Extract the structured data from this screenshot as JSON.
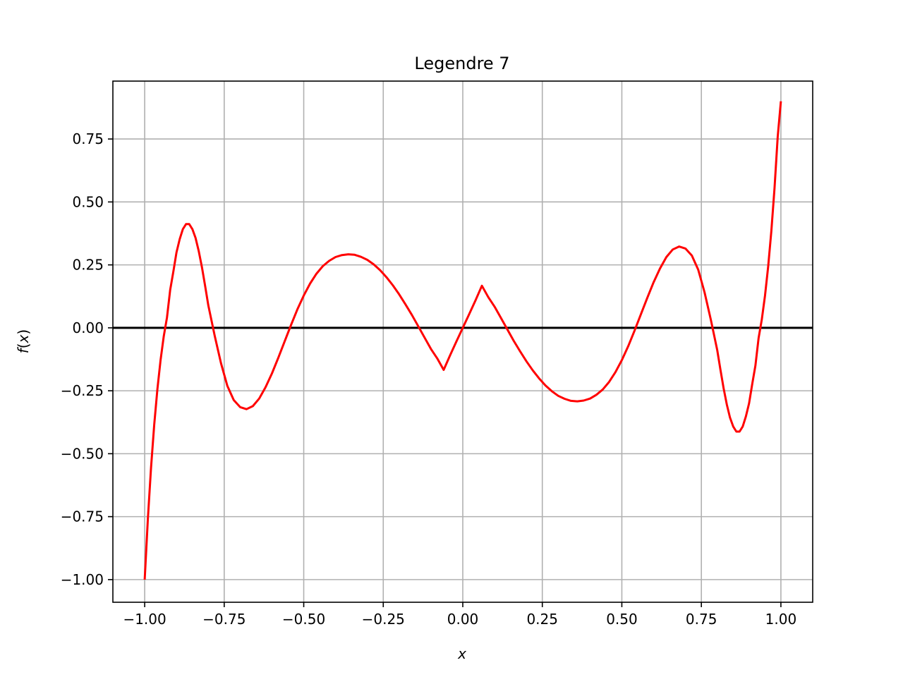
{
  "chart_data": {
    "type": "line",
    "title": "Legendre 7",
    "xlabel": "x",
    "ylabel": {
      "func": "f",
      "open": "(",
      "var": "x",
      "close": ")"
    },
    "xlim": [
      -1.1,
      1.1
    ],
    "ylim": [
      -1.09,
      0.98
    ],
    "grid": true,
    "legend": "none",
    "x_ticks": [
      -1.0,
      -0.75,
      -0.5,
      -0.25,
      0.0,
      0.25,
      0.5,
      0.75,
      1.0
    ],
    "x_tick_labels": [
      "−1.00",
      "−0.75",
      "−0.50",
      "−0.25",
      "0.00",
      "0.25",
      "0.50",
      "0.75",
      "1.00"
    ],
    "y_ticks": [
      -1.0,
      -0.75,
      -0.5,
      -0.25,
      0.0,
      0.25,
      0.5,
      0.75
    ],
    "y_tick_labels": [
      "−1.00",
      "−0.75",
      "−0.50",
      "−0.25",
      "0.00",
      "0.25",
      "0.50",
      "0.75"
    ],
    "reference_line": {
      "y": 0,
      "color": "#000000"
    },
    "series": [
      {
        "color": "#ff0000",
        "x": [
          -1.0,
          -0.99,
          -0.98,
          -0.97,
          -0.96,
          -0.95,
          -0.94,
          -0.93,
          -0.92,
          -0.91,
          -0.9,
          -0.89,
          -0.88,
          -0.87,
          -0.86,
          -0.85,
          -0.84,
          -0.83,
          -0.82,
          -0.81,
          -0.8,
          -0.78,
          -0.76,
          -0.74,
          -0.72,
          -0.7,
          -0.68,
          -0.66,
          -0.64,
          -0.62,
          -0.6,
          -0.58,
          -0.56,
          -0.54,
          -0.52,
          -0.5,
          -0.48,
          -0.46,
          -0.44,
          -0.42,
          -0.4,
          -0.38,
          -0.36,
          -0.34,
          -0.32,
          -0.3,
          -0.28,
          -0.26,
          -0.24,
          -0.22,
          -0.2,
          -0.18,
          -0.16,
          -0.14,
          -0.12,
          -0.1,
          -0.08,
          -0.06,
          -0.04,
          -0.02,
          0.0,
          0.02,
          0.04,
          0.06,
          0.08,
          0.1,
          0.12,
          0.14,
          0.16,
          0.18,
          0.2,
          0.22,
          0.24,
          0.26,
          0.28,
          0.3,
          0.32,
          0.34,
          0.36,
          0.38,
          0.4,
          0.42,
          0.44,
          0.46,
          0.48,
          0.5,
          0.52,
          0.54,
          0.56,
          0.58,
          0.6,
          0.62,
          0.64,
          0.66,
          0.68,
          0.7,
          0.72,
          0.74,
          0.76,
          0.78,
          0.8,
          0.81,
          0.82,
          0.83,
          0.84,
          0.85,
          0.86,
          0.87,
          0.88,
          0.89,
          0.9,
          0.91,
          0.92,
          0.93,
          0.94,
          0.95,
          0.96,
          0.97,
          0.98,
          0.99,
          1.0
        ],
        "y": [
          -1.0,
          -0.759,
          -0.555,
          -0.385,
          -0.244,
          -0.128,
          -0.034,
          0.041,
          0.15,
          0.223,
          0.3,
          0.352,
          0.392,
          0.412,
          0.412,
          0.392,
          0.357,
          0.305,
          0.24,
          0.166,
          0.089,
          -0.031,
          -0.141,
          -0.231,
          -0.287,
          -0.315,
          -0.323,
          -0.311,
          -0.281,
          -0.236,
          -0.181,
          -0.119,
          -0.054,
          0.011,
          0.073,
          0.128,
          0.176,
          0.215,
          0.245,
          0.266,
          0.281,
          0.289,
          0.292,
          0.29,
          0.282,
          0.27,
          0.252,
          0.229,
          0.201,
          0.169,
          0.133,
          0.093,
          0.051,
          0.006,
          -0.039,
          -0.084,
          -0.122,
          -0.167,
          -0.109,
          -0.054,
          0.0,
          0.054,
          0.109,
          0.167,
          0.122,
          0.084,
          0.039,
          -0.006,
          -0.051,
          -0.093,
          -0.133,
          -0.169,
          -0.201,
          -0.229,
          -0.252,
          -0.27,
          -0.282,
          -0.29,
          -0.292,
          -0.289,
          -0.281,
          -0.266,
          -0.245,
          -0.215,
          -0.176,
          -0.128,
          -0.073,
          -0.011,
          0.054,
          0.119,
          0.181,
          0.236,
          0.281,
          0.311,
          0.323,
          0.315,
          0.287,
          0.231,
          0.141,
          0.031,
          -0.089,
          -0.166,
          -0.24,
          -0.305,
          -0.357,
          -0.392,
          -0.412,
          -0.412,
          -0.392,
          -0.352,
          -0.3,
          -0.223,
          -0.15,
          -0.041,
          0.034,
          0.128,
          0.244,
          0.385,
          0.555,
          0.759,
          0.9
        ]
      }
    ]
  }
}
